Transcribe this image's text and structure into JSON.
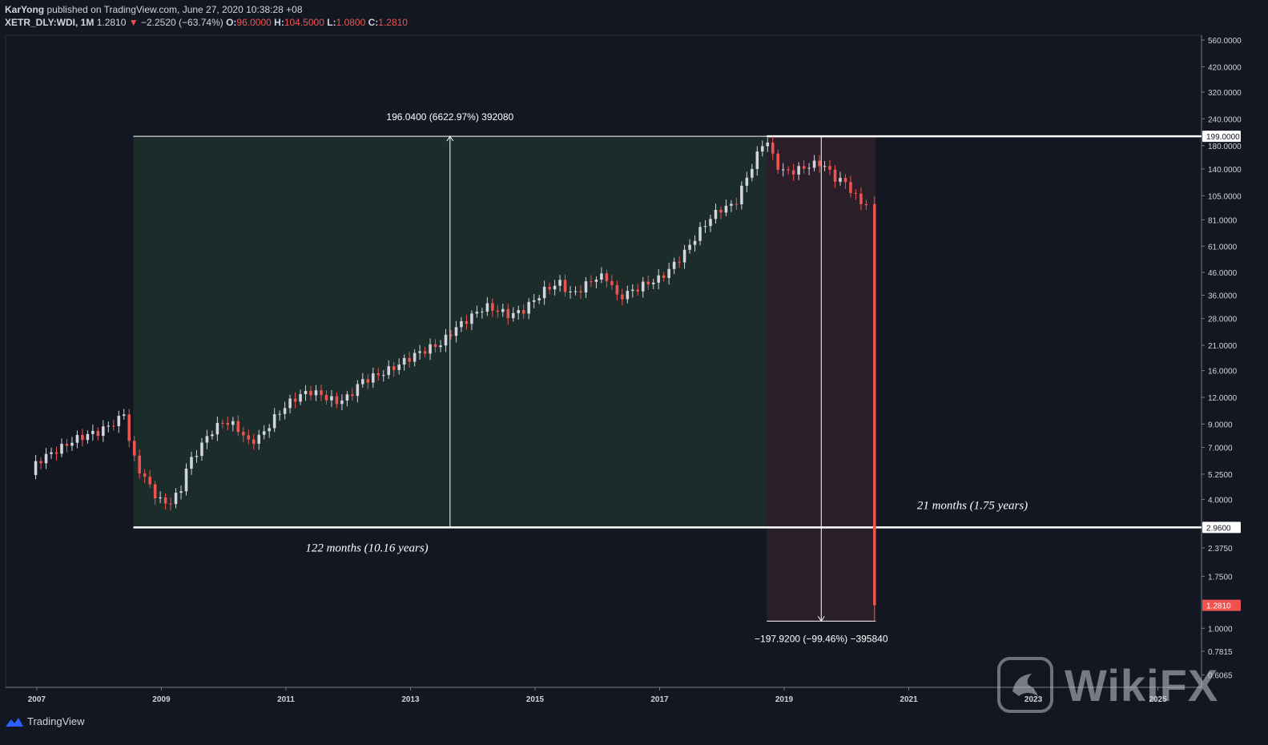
{
  "header": {
    "author": "KarYong",
    "published": "published on TradingView.com, June 27, 2020 10:38:28 +08",
    "symbol": "XETR_DLY:WDI, 1M",
    "last": "1.2810",
    "change": "−2.2520 (−63.74%)",
    "o_label": "O:",
    "o": "96.0000",
    "h_label": "H:",
    "h": "104.5000",
    "l_label": "L:",
    "l": "1.0800",
    "c_label": "C:",
    "c": "1.2810"
  },
  "footer": {
    "brand": "TradingView"
  },
  "watermark": {
    "text": "WikiFX"
  },
  "colors": {
    "background": "#131722",
    "up": "#d1d4dc",
    "down": "#ef5350",
    "green_zone": "#1c2c2a",
    "red_zone": "#2a1f28",
    "price_tag": "#ef5350"
  },
  "chart_data": {
    "type": "candlestick",
    "scale": "log",
    "xlim": [
      2006.5,
      2025.7
    ],
    "ylim": [
      0.53,
      590
    ],
    "x_ticks": [
      "2007",
      "2009",
      "2011",
      "2013",
      "2015",
      "2017",
      "2019",
      "2021",
      "2023",
      "2025"
    ],
    "y_ticks": [
      {
        "v": 560,
        "label": "560.0000"
      },
      {
        "v": 420,
        "label": "420.0000"
      },
      {
        "v": 320,
        "label": "320.0000"
      },
      {
        "v": 240,
        "label": "240.0000"
      },
      {
        "v": 180,
        "label": "180.0000"
      },
      {
        "v": 140,
        "label": "140.0000"
      },
      {
        "v": 105,
        "label": "105.0000"
      },
      {
        "v": 81,
        "label": "81.0000"
      },
      {
        "v": 61,
        "label": "61.0000"
      },
      {
        "v": 46,
        "label": "46.0000"
      },
      {
        "v": 36,
        "label": "36.0000"
      },
      {
        "v": 28,
        "label": "28.0000"
      },
      {
        "v": 21,
        "label": "21.0000"
      },
      {
        "v": 16,
        "label": "16.0000"
      },
      {
        "v": 12,
        "label": "12.0000"
      },
      {
        "v": 9,
        "label": "9.0000"
      },
      {
        "v": 7,
        "label": "7.0000"
      },
      {
        "v": 5.25,
        "label": "5.2500"
      },
      {
        "v": 4,
        "label": "4.0000"
      },
      {
        "v": 2.375,
        "label": "2.3750"
      },
      {
        "v": 1.75,
        "label": "1.7500"
      },
      {
        "v": 1,
        "label": "1.0000"
      },
      {
        "v": 0.7815,
        "label": "0.7815"
      },
      {
        "v": 0.6065,
        "label": "0.6065"
      }
    ],
    "price_labels": [
      {
        "v": 199,
        "label": "199.0000",
        "style": "white"
      },
      {
        "v": 2.96,
        "label": "2.9600",
        "style": "white"
      },
      {
        "v": 1.281,
        "label": "1.2810",
        "style": "red"
      }
    ],
    "candles_path": [
      [
        2006.9,
        5.2
      ],
      [
        2007.0,
        6.0
      ],
      [
        2007.2,
        6.5
      ],
      [
        2007.4,
        7.0
      ],
      [
        2007.6,
        7.6
      ],
      [
        2007.8,
        8.0
      ],
      [
        2008.0,
        8.3
      ],
      [
        2008.2,
        9.0
      ],
      [
        2008.3,
        9.3
      ],
      [
        2008.42,
        10.4
      ],
      [
        2008.5,
        7.0
      ],
      [
        2008.6,
        5.8
      ],
      [
        2008.8,
        4.7
      ],
      [
        2008.95,
        4.0
      ],
      [
        2009.1,
        3.8
      ],
      [
        2009.3,
        4.3
      ],
      [
        2009.4,
        5.6
      ],
      [
        2009.6,
        6.9
      ],
      [
        2009.8,
        8.3
      ],
      [
        2010.0,
        9.3
      ],
      [
        2010.2,
        8.8
      ],
      [
        2010.4,
        7.4
      ],
      [
        2010.6,
        7.9
      ],
      [
        2010.8,
        9.5
      ],
      [
        2011.0,
        11.0
      ],
      [
        2011.2,
        12.2
      ],
      [
        2011.4,
        12.8
      ],
      [
        2011.6,
        12.2
      ],
      [
        2011.8,
        11.4
      ],
      [
        2012.0,
        12.0
      ],
      [
        2012.2,
        14.2
      ],
      [
        2012.4,
        15.0
      ],
      [
        2012.6,
        15.8
      ],
      [
        2012.8,
        17.0
      ],
      [
        2013.0,
        18.5
      ],
      [
        2013.2,
        19.8
      ],
      [
        2013.5,
        21.5
      ],
      [
        2013.7,
        25.0
      ],
      [
        2014.0,
        29.0
      ],
      [
        2014.2,
        32.0
      ],
      [
        2014.4,
        30.5
      ],
      [
        2014.6,
        29.0
      ],
      [
        2014.8,
        30.5
      ],
      [
        2015.0,
        34.5
      ],
      [
        2015.2,
        39.0
      ],
      [
        2015.4,
        41.0
      ],
      [
        2015.6,
        36.0
      ],
      [
        2015.8,
        40.0
      ],
      [
        2016.0,
        44.0
      ],
      [
        2016.2,
        43.0
      ],
      [
        2016.3,
        35.0
      ],
      [
        2016.5,
        37.0
      ],
      [
        2016.8,
        41.0
      ],
      [
        2017.0,
        43.0
      ],
      [
        2017.2,
        49.0
      ],
      [
        2017.4,
        57.0
      ],
      [
        2017.6,
        69.0
      ],
      [
        2017.8,
        82.0
      ],
      [
        2018.0,
        92.0
      ],
      [
        2018.2,
        95.0
      ],
      [
        2018.4,
        128.0
      ],
      [
        2018.6,
        170.0
      ],
      [
        2018.7,
        199.0
      ],
      [
        2018.85,
        150.0
      ],
      [
        2019.0,
        135.0
      ],
      [
        2019.2,
        138.0
      ],
      [
        2019.4,
        145.0
      ],
      [
        2019.6,
        150.0
      ],
      [
        2019.8,
        128.0
      ],
      [
        2020.0,
        120.0
      ],
      [
        2020.2,
        98.0
      ],
      [
        2020.35,
        96.0
      ],
      [
        2020.45,
        1.281
      ]
    ],
    "volatility": 0.07,
    "low_point": 2.96,
    "high_point": 199.0,
    "measure_up": {
      "x_start": 2008.55,
      "x_end": 2018.72,
      "from": 2.96,
      "to": 199.0,
      "label": "196.0400 (6622.97%) 392080",
      "period": "122 months (10.16 years)"
    },
    "measure_down": {
      "x_start": 2018.72,
      "x_end": 2020.47,
      "from": 199.0,
      "to": 1.08,
      "label": "−197.9200 (−99.46%) −395840",
      "period": "21 months (1.75 years)"
    }
  }
}
